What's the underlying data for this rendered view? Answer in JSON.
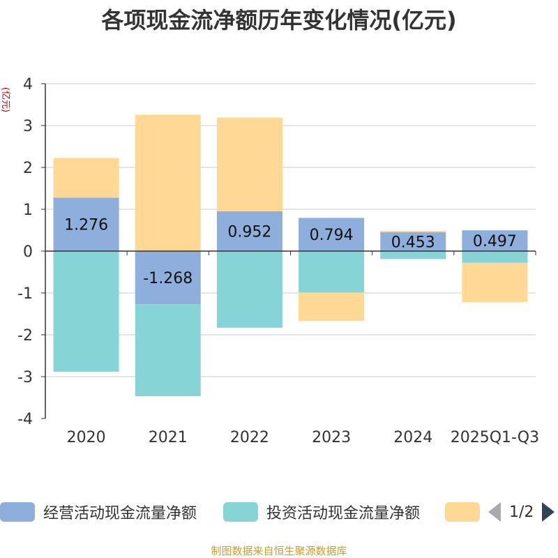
{
  "chart_data": {
    "type": "bar",
    "stacked": true,
    "title": "各项现金流净额历年变化情况(亿元)",
    "ylabel": "(亿元)",
    "categories": [
      "2020",
      "2021",
      "2022",
      "2023",
      "2024",
      "2025Q1-Q3"
    ],
    "ylim": [
      -4,
      4
    ],
    "yticks": [
      -4,
      -3,
      -2,
      -1,
      0,
      1,
      2,
      3,
      4
    ],
    "grid": true,
    "legend_position": "bottom",
    "series": [
      {
        "name": "经营活动现金流量净额",
        "color": "#8eaedb",
        "values": [
          1.276,
          -1.268,
          0.952,
          0.794,
          0.453,
          0.497
        ],
        "show_labels": true
      },
      {
        "name": "投资活动现金流量净额",
        "color": "#86d4d6",
        "values": [
          -2.88,
          -2.2,
          -1.83,
          -0.99,
          -0.19,
          -0.28
        ],
        "show_labels": false
      },
      {
        "name": "",
        "color": "#fed894",
        "values": [
          0.95,
          3.26,
          2.24,
          -0.68,
          0.03,
          -0.94
        ],
        "show_labels": false
      }
    ]
  },
  "legend": {
    "page_text": "1/2"
  },
  "source_note": "制图数据来自恒生聚源数据库"
}
